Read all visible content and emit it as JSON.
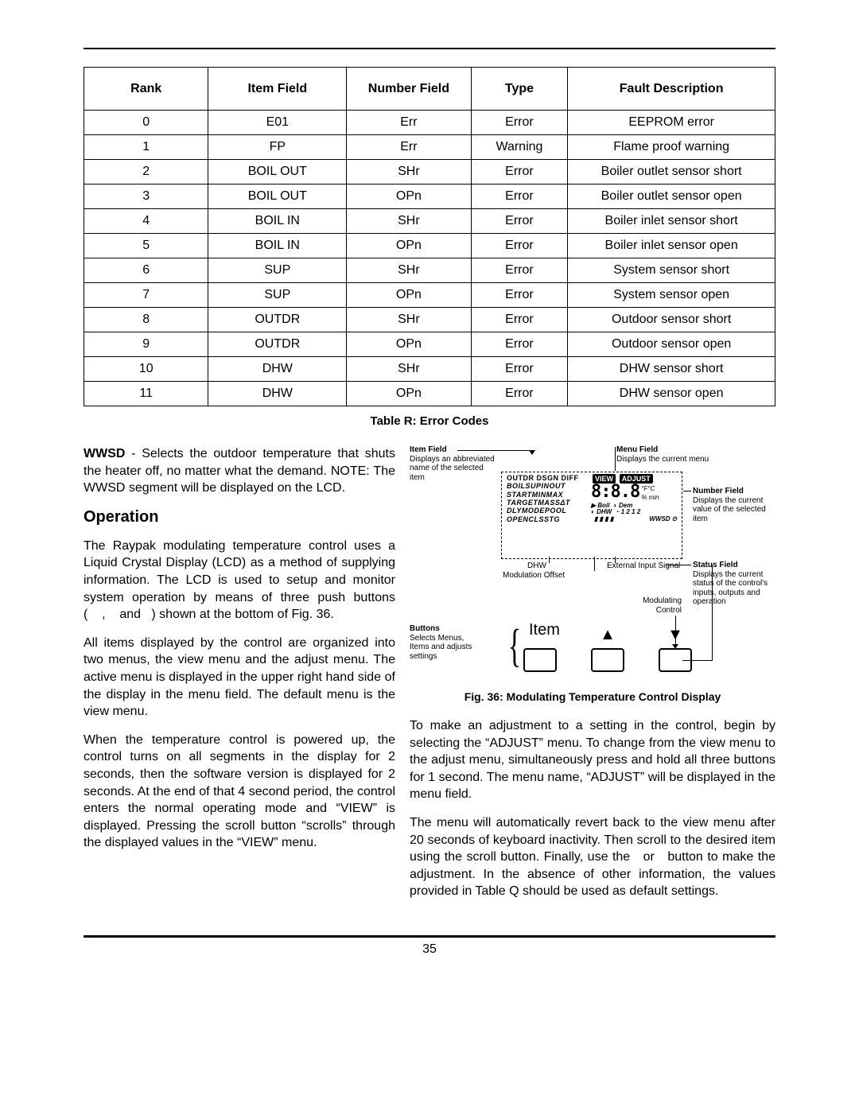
{
  "table": {
    "columns": [
      "Rank",
      "Item Field",
      "Number Field",
      "Type",
      "Fault Description"
    ],
    "rows": [
      [
        "0",
        "E01",
        "Err",
        "Error",
        "EEPROM error"
      ],
      [
        "1",
        "FP",
        "Err",
        "Warning",
        "Flame proof warning"
      ],
      [
        "2",
        "BOIL OUT",
        "SHr",
        "Error",
        "Boiler outlet sensor short"
      ],
      [
        "3",
        "BOIL OUT",
        "OPn",
        "Error",
        "Boiler outlet sensor open"
      ],
      [
        "4",
        "BOIL IN",
        "SHr",
        "Error",
        "Boiler inlet sensor short"
      ],
      [
        "5",
        "BOIL IN",
        "OPn",
        "Error",
        "Boiler inlet sensor open"
      ],
      [
        "6",
        "SUP",
        "SHr",
        "Error",
        "System sensor short"
      ],
      [
        "7",
        "SUP",
        "OPn",
        "Error",
        "System sensor open"
      ],
      [
        "8",
        "OUTDR",
        "SHr",
        "Error",
        "Outdoor sensor short"
      ],
      [
        "9",
        "OUTDR",
        "OPn",
        "Error",
        "Outdoor sensor open"
      ],
      [
        "10",
        "DHW",
        "SHr",
        "Error",
        "DHW sensor short"
      ],
      [
        "11",
        "DHW",
        "OPn",
        "Error",
        "DHW sensor open"
      ]
    ],
    "caption": "Table R: Error Codes",
    "col_widths_pct": [
      18,
      20,
      18,
      14,
      30
    ],
    "border_color": "#000000",
    "font_size": 16
  },
  "wwsd": {
    "lead": "WWSD",
    "text": " - Selects the outdoor temperature that shuts the heater off, no matter what the demand. NOTE: The WWSD segment will be displayed on the LCD."
  },
  "operation_heading": "Operation",
  "left_paras": [
    "The Raypak modulating temperature control uses a Liquid Crystal Display (LCD) as a method of supplying information.  The LCD is used to setup and monitor system operation by means of three push buttons (    ,    and   ) shown at the bottom of Fig. 36.",
    "All items displayed by the control are organized into two menus, the view menu and the adjust menu.  The active menu is displayed in the upper right hand side of the display in the menu field.  The default menu is the view menu.",
    "When the temperature control is powered up, the control turns on all segments in the display for 2 seconds, then the software version is displayed for 2 seconds. At the end of that 4 second period, the control enters the normal operating mode and “VIEW” is displayed. Pressing the scroll button “scrolls” through the displayed values in the “VIEW” menu."
  ],
  "right_paras": [
    "To make an adjustment to a setting in the control, begin by selecting the “ADJUST” menu. To change from the view menu to the adjust menu, simultaneously press and hold all three buttons for 1 second. The menu name, “ADJUST” will be displayed in the menu field.",
    "The menu will automatically revert back to the view menu after 20 seconds of keyboard inactivity. Then scroll to the desired item using the scroll button. Finally, use the   or   button to make the adjustment. In the absence of other information, the values provided in Table Q should be used as default settings."
  ],
  "figure_caption": "Fig. 36: Modulating Temperature Control Display",
  "diagram": {
    "item_field": {
      "title": "Item Field",
      "desc": "Displays an abbreviated name of the selected item"
    },
    "menu_field": {
      "title": "Menu Field",
      "desc": "Displays the current menu"
    },
    "number_field": {
      "title": "Number Field",
      "desc": "Displays the current value of the selected item"
    },
    "status_field": {
      "title": "Status Field",
      "desc": "Displays the current status of the control's inputs, outputs and operation"
    },
    "buttons": {
      "title": "Buttons",
      "desc": "Selects Menus, Items and adjusts settings"
    },
    "lcd_lines": [
      "OUTDR  DSGN  DIFF",
      "BOILSUPINOUT",
      "STARTMINMAX",
      "TARGETMASSΔT",
      "DLYMODEPOOL",
      "OPENCLSSTG"
    ],
    "lcd_badges": [
      "VIEW",
      "ADJUST"
    ],
    "lcd_segment": "8:8.8",
    "lcd_units_top": "°F°C",
    "lcd_units_mid": "% min",
    "lcd_dem": "Dem",
    "lcd_boil": "Boil",
    "lcd_dhw_small": "DHW",
    "lcd_1212": "1 2 1 2",
    "lcd_wwsd": "WWSD",
    "callout_dhw": "DHW",
    "callout_ext": "External Input Signal",
    "callout_mod_offset": "Modulation  Offset",
    "callout_modctrl": "Modulating Control",
    "item_label": "Item",
    "triangles": [
      "▲",
      "▼"
    ],
    "colors": {
      "fg": "#000000",
      "bg": "#ffffff",
      "badge_bg": "#000000",
      "badge_fg": "#ffffff",
      "dash": "#000000"
    }
  },
  "page_number": "35"
}
